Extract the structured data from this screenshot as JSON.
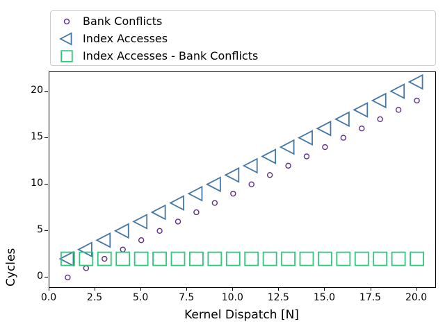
{
  "figure": {
    "background": "#ffffff",
    "spine_color": "#000000",
    "legend_border_color": "#cccccc"
  },
  "chart_data": {
    "type": "scatter",
    "title": "",
    "xlabel": "Kernel Dispatch [N]",
    "ylabel": "Cycles",
    "xlim": [
      0,
      21
    ],
    "ylim": [
      -1.05,
      22.05
    ],
    "grid": false,
    "legend_position": "top-span",
    "xticks": [
      0.0,
      2.5,
      5.0,
      7.5,
      10.0,
      12.5,
      15.0,
      17.5,
      20.0
    ],
    "xtick_labels": [
      "0.0",
      "2.5",
      "5.0",
      "7.5",
      "10.0",
      "12.5",
      "15.0",
      "17.5",
      "20.0"
    ],
    "yticks": [
      0,
      5,
      10,
      15,
      20
    ],
    "ytick_labels": [
      "0",
      "5",
      "10",
      "15",
      "20"
    ],
    "x": [
      1,
      2,
      3,
      4,
      5,
      6,
      7,
      8,
      9,
      10,
      11,
      12,
      13,
      14,
      15,
      16,
      17,
      18,
      19,
      20
    ],
    "series": [
      {
        "name": "Bank Conflicts",
        "marker": "circle",
        "color": "#5b2d86",
        "size": 7,
        "stroke_width": 1.4,
        "values": [
          0,
          1,
          2,
          3,
          4,
          5,
          6,
          7,
          8,
          9,
          10,
          11,
          12,
          13,
          14,
          15,
          16,
          17,
          18,
          19
        ]
      },
      {
        "name": "Index Accesses",
        "marker": "triangle-left",
        "color": "#4477a6",
        "size": 22,
        "stroke_width": 1.8,
        "values": [
          2,
          3,
          4,
          5,
          6,
          7,
          8,
          9,
          10,
          11,
          12,
          13,
          14,
          15,
          16,
          17,
          18,
          19,
          20,
          21
        ]
      },
      {
        "name": "Index Accesses - Bank Conflicts",
        "marker": "square",
        "color": "#2fc77c",
        "size": 19,
        "stroke_width": 1.8,
        "values": [
          2,
          2,
          2,
          2,
          2,
          2,
          2,
          2,
          2,
          2,
          2,
          2,
          2,
          2,
          2,
          2,
          2,
          2,
          2,
          2
        ]
      }
    ]
  }
}
